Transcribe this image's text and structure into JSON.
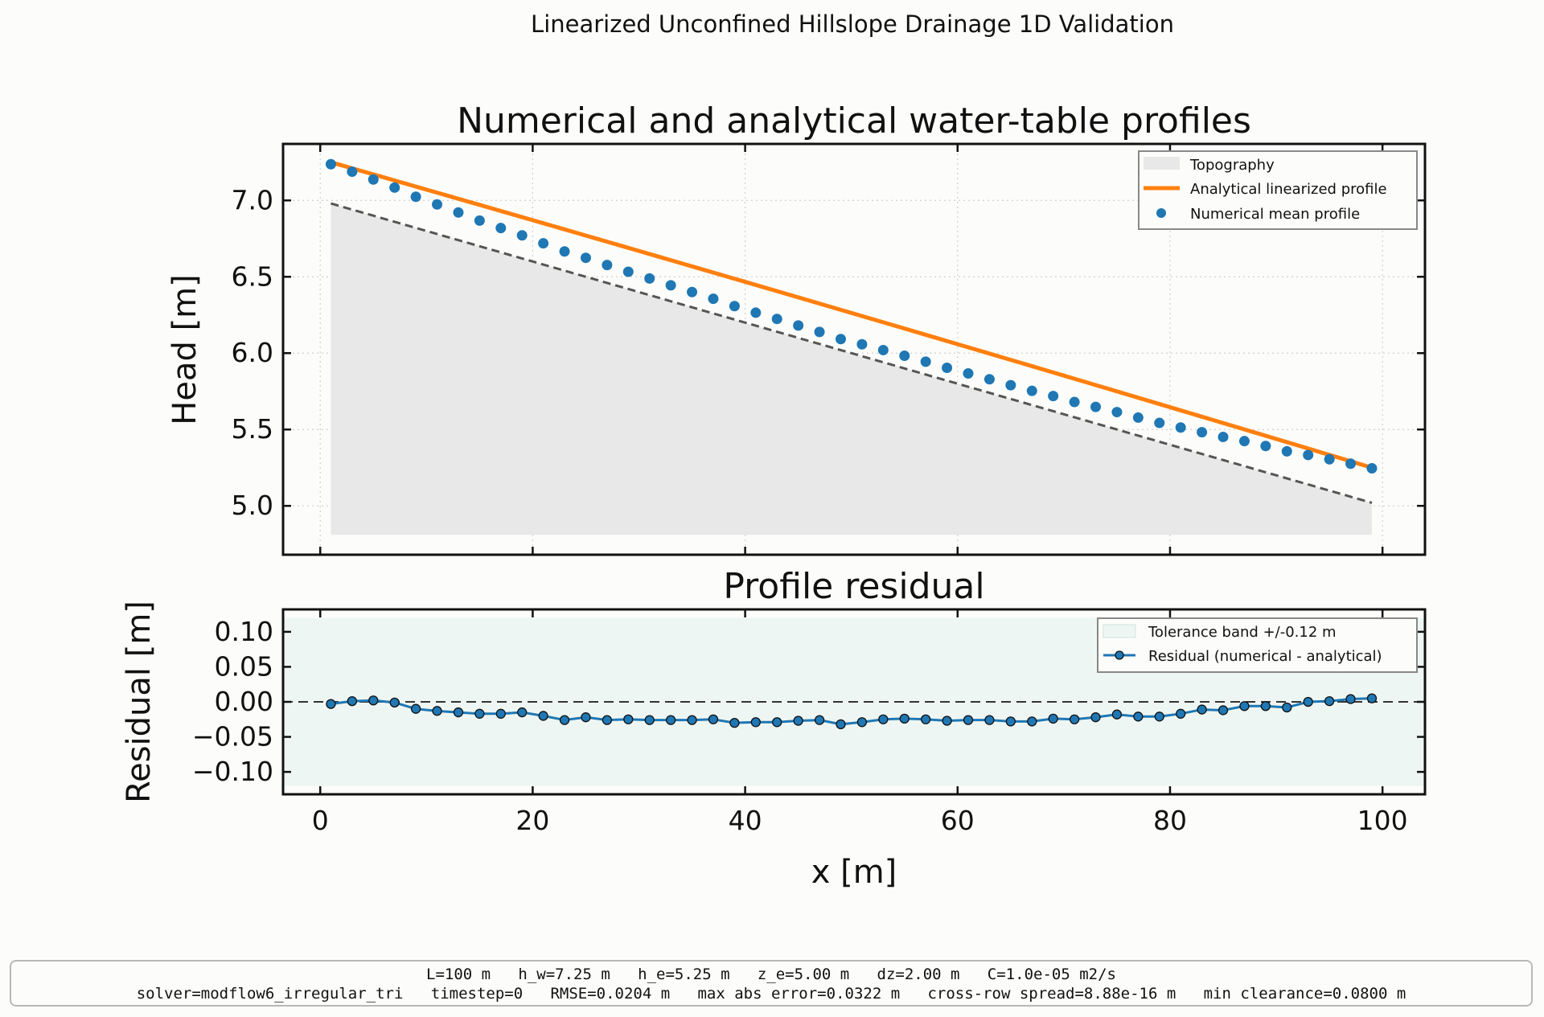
{
  "suptitle": "Linearized Unconfined Hillslope Drainage 1D Validation",
  "footer": {
    "line1": "L=100 m   h_w=7.25 m   h_e=5.25 m   z_e=5.00 m   dz=2.00 m   C=1.0e-05 m2/s",
    "line2": "solver=modflow6_irregular_tri   timestep=0   RMSE=0.0204 m   max abs error=0.0322 m   cross-row spread=8.88e-16 m   min clearance=0.0800 m"
  },
  "colors": {
    "analytical": "#ff7f0e",
    "numerical": "#1f77b4",
    "topography": "#e8e8e8",
    "grid": "#cfcfcf"
  },
  "chart_data": [
    {
      "type": "line",
      "title": "Numerical and analytical water-table profiles",
      "xlabel": "",
      "ylabel": "Head [m]",
      "xlim": [
        -3.5,
        104
      ],
      "ylim": [
        4.68,
        7.37
      ],
      "xticks": [
        0,
        20,
        40,
        60,
        80,
        100
      ],
      "yticks": [
        5.0,
        5.5,
        6.0,
        6.5,
        7.0
      ],
      "ytick_labels": [
        "5.0",
        "5.5",
        "6.0",
        "6.5",
        "7.0"
      ],
      "grid": true,
      "legend_position": "top-right",
      "legend": [
        "Topography",
        "Analytical linearized profile",
        "Numerical mean profile"
      ],
      "topography": {
        "x": [
          1,
          99
        ],
        "top": [
          6.98,
          5.02
        ],
        "bottom": 4.81
      },
      "analytical": {
        "x": [
          1,
          99
        ],
        "h_w": 7.25,
        "h_e": 5.25,
        "curvature": 0.053
      },
      "numerical": {
        "x": [
          1,
          3,
          5,
          7,
          9,
          11,
          13,
          15,
          17,
          19,
          21,
          23,
          25,
          27,
          29,
          31,
          33,
          35,
          37,
          39,
          41,
          43,
          45,
          47,
          49,
          51,
          53,
          55,
          57,
          59,
          61,
          63,
          65,
          67,
          69,
          71,
          73,
          75,
          77,
          79,
          81,
          83,
          85,
          87,
          89,
          91,
          93,
          95,
          97,
          99
        ],
        "y": [
          7.237,
          7.188,
          7.137,
          7.084,
          7.024,
          6.974,
          6.921,
          6.868,
          6.819,
          6.771,
          6.719,
          6.666,
          6.624,
          6.577,
          6.533,
          6.489,
          6.444,
          6.4,
          6.356,
          6.308,
          6.265,
          6.224,
          6.181,
          6.139,
          6.092,
          6.058,
          6.02,
          5.983,
          5.944,
          5.904,
          5.867,
          5.829,
          5.79,
          5.753,
          5.719,
          5.68,
          5.648,
          5.614,
          5.578,
          5.543,
          5.513,
          5.482,
          5.451,
          5.424,
          5.392,
          5.357,
          5.333,
          5.305,
          5.276,
          5.246
        ]
      }
    },
    {
      "type": "line",
      "title": "Profile residual",
      "xlabel": "x [m]",
      "ylabel": "Residual [m]",
      "xlim": [
        -3.5,
        104
      ],
      "ylim": [
        -0.132,
        0.132
      ],
      "xticks": [
        0,
        20,
        40,
        60,
        80,
        100
      ],
      "yticks": [
        -0.1,
        -0.05,
        0.0,
        0.05,
        0.1
      ],
      "ytick_labels": [
        "−0.10",
        "−0.05",
        "0.00",
        "0.05",
        "0.10"
      ],
      "grid": true,
      "legend_position": "top-right",
      "legend": [
        "Tolerance band +/-0.12 m",
        "Residual (numerical - analytical)"
      ],
      "tolerance": 0.12,
      "series": [
        {
          "name": "Residual (numerical - analytical)",
          "x": [
            1,
            3,
            5,
            7,
            9,
            11,
            13,
            15,
            17,
            19,
            21,
            23,
            25,
            27,
            29,
            31,
            33,
            35,
            37,
            39,
            41,
            43,
            45,
            47,
            49,
            51,
            53,
            55,
            57,
            59,
            61,
            63,
            65,
            67,
            69,
            71,
            73,
            75,
            77,
            79,
            81,
            83,
            85,
            87,
            89,
            91,
            93,
            95,
            97,
            99
          ],
          "y": [
            -0.003,
            0.001,
            0.002,
            -0.001,
            -0.01,
            -0.013,
            -0.015,
            -0.017,
            -0.017,
            -0.015,
            -0.02,
            -0.026,
            -0.022,
            -0.026,
            -0.025,
            -0.026,
            -0.026,
            -0.026,
            -0.025,
            -0.03,
            -0.029,
            -0.029,
            -0.027,
            -0.026,
            -0.032,
            -0.029,
            -0.025,
            -0.024,
            -0.025,
            -0.027,
            -0.026,
            -0.026,
            -0.028,
            -0.028,
            -0.024,
            -0.025,
            -0.022,
            -0.018,
            -0.021,
            -0.021,
            -0.017,
            -0.011,
            -0.012,
            -0.006,
            -0.006,
            -0.008,
            0.0,
            0.001,
            0.004,
            0.005
          ]
        }
      ]
    }
  ]
}
